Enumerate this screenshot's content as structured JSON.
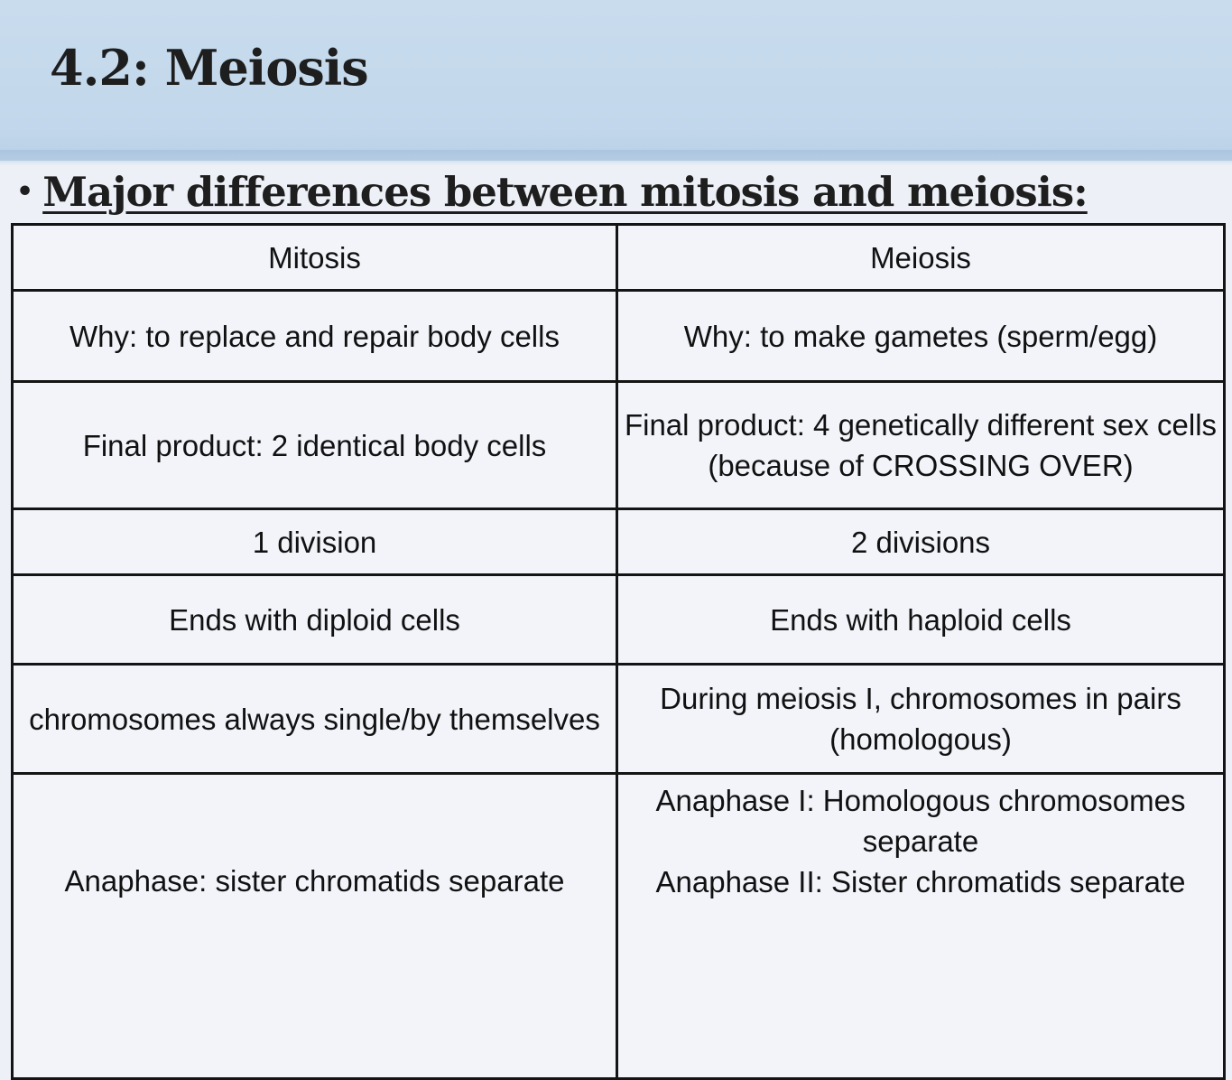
{
  "slide": {
    "title": "4.2: Meiosis",
    "bullet": "•",
    "subtitle": "Major differences between mitosis and meiosis:"
  },
  "table": {
    "headers": [
      "Mitosis",
      "Meiosis"
    ],
    "rows": [
      [
        "Why: to replace and repair body cells",
        "Why: to make gametes (sperm/egg)"
      ],
      [
        "Final product: 2 identical body cells",
        "Final product: 4 genetically different sex cells (because of CROSSING OVER)"
      ],
      [
        "1 division",
        "2 divisions"
      ],
      [
        "Ends with diploid cells",
        "Ends with haploid cells"
      ],
      [
        "chromosomes always single/by themselves",
        "During meiosis I, chromosomes in pairs (homologous)"
      ],
      [
        "Anaphase: sister chromatids separate",
        "Anaphase I: Homologous chromosomes separate\nAnaphase II: Sister chromatids separate"
      ]
    ]
  },
  "colors": {
    "header_band": "#c2d7eb",
    "background": "#edf1f7",
    "text": "#1e1e1e",
    "table_border": "#141414"
  }
}
